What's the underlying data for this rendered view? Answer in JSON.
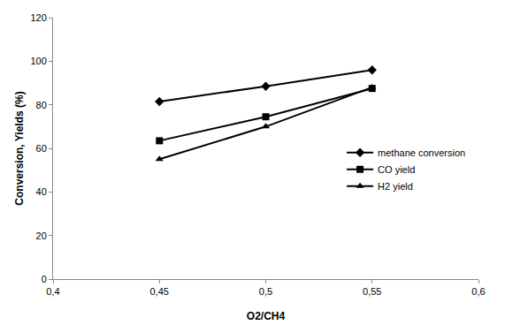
{
  "chart_data": {
    "type": "line",
    "x_label": "O2/CH4",
    "y_label": "Conversion, Yields (%)",
    "x": [
      0.45,
      0.5,
      0.55
    ],
    "series": [
      {
        "name": "methane conversion",
        "color": "#000000",
        "marker": "diamond",
        "values": [
          81.5,
          88.5,
          96
        ]
      },
      {
        "name": "CO yield",
        "color": "#000000",
        "marker": "square",
        "values": [
          63.5,
          74.5,
          87.5
        ]
      },
      {
        "name": "H2 yield",
        "color": "#000000",
        "marker": "triangle-up",
        "values": [
          55,
          70,
          88
        ]
      }
    ],
    "xlim": [
      0.4,
      0.6
    ],
    "xticks": [
      {
        "value": 0.4,
        "label": "0,4"
      },
      {
        "value": 0.45,
        "label": "0,45"
      },
      {
        "value": 0.5,
        "label": "0,5"
      },
      {
        "value": 0.55,
        "label": "0,55"
      },
      {
        "value": 0.6,
        "label": "0,6"
      }
    ],
    "ylim": [
      0,
      120
    ],
    "yticks": [
      0,
      20,
      40,
      60,
      80,
      100,
      120
    ],
    "grid": false,
    "legend": "right"
  }
}
